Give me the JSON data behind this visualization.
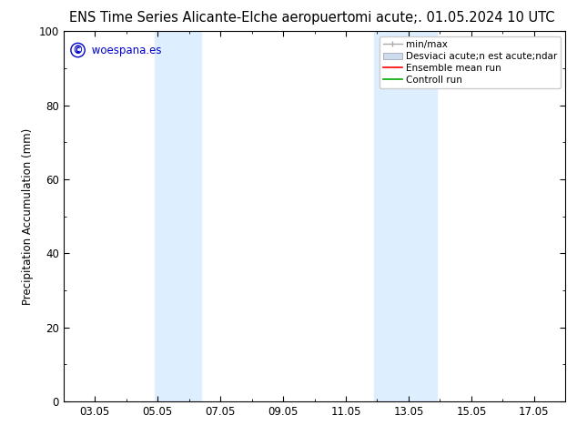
{
  "title_left": "ENS Time Series Alicante-Elche aeropuerto",
  "title_right": "mi acute;. 01.05.2024 10 UTC",
  "ylabel": "Precipitation Accumulation (mm)",
  "ylim": [
    0,
    100
  ],
  "yticks": [
    0,
    20,
    40,
    60,
    80,
    100
  ],
  "xtick_labels": [
    "03.05",
    "05.05",
    "07.05",
    "09.05",
    "11.05",
    "13.05",
    "15.05",
    "17.05"
  ],
  "xtick_positions": [
    2,
    4,
    6,
    8,
    10,
    12,
    14,
    16
  ],
  "xmin": 1,
  "xmax": 17,
  "shaded_bands": [
    {
      "xmin": 3.9,
      "xmax": 5.4,
      "color": "#ddeeff"
    },
    {
      "xmin": 10.9,
      "xmax": 12.9,
      "color": "#ddeeff"
    }
  ],
  "legend_label_minmax": "min/max",
  "legend_label_std": "Desviaci acute;n est acute;ndar",
  "legend_label_ens": "Ensemble mean run",
  "legend_label_ctrl": "Controll run",
  "watermark_text": " woespana.es",
  "watermark_color": "#0000cc",
  "background_color": "#ffffff",
  "plot_bg_color": "#ffffff",
  "font_size_title": 10.5,
  "font_size_legend": 7.5,
  "font_size_ticks": 8.5,
  "font_size_ylabel": 8.5,
  "font_size_watermark": 8.5,
  "minmax_color": "#aaaaaa",
  "std_color": "#ccdcec",
  "ens_color": "#ff0000",
  "ctrl_color": "#00aa00"
}
